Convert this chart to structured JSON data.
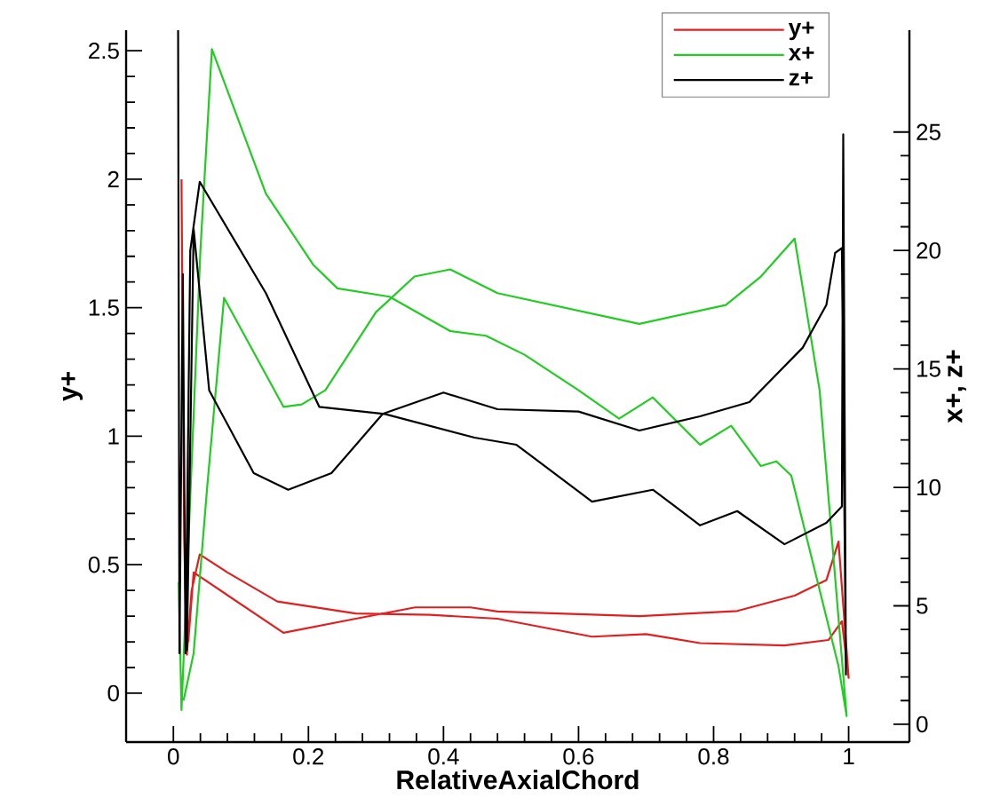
{
  "chart_data": {
    "type": "line",
    "xlabel": "RelativeAxialChord",
    "ylabel": "y+",
    "y2label": "x+, z+",
    "xlim": [
      -0.07,
      1.09
    ],
    "xticks": [
      0,
      0.2,
      0.4,
      0.6,
      0.8,
      1
    ],
    "ylim": [
      -0.19,
      2.58
    ],
    "yticks": [
      0,
      0.5,
      1,
      1.5,
      2,
      2.5
    ],
    "y2lim": [
      -0.75,
      29.3
    ],
    "y2ticks": [
      0,
      5,
      10,
      15,
      20,
      25
    ],
    "legend": "top right",
    "grid": false,
    "marker": "none",
    "line_style": "solid",
    "series": [
      {
        "name": "y+",
        "color": "#e02020",
        "axis": "y",
        "x": [
          0.012,
          0.016,
          0.02,
          0.027,
          0.039,
          0.08,
          0.154,
          0.27,
          0.38,
          0.48,
          0.62,
          0.7,
          0.78,
          0.905,
          0.97,
          0.99,
          1.0,
          0.985,
          0.967,
          0.92,
          0.835,
          0.69,
          0.48,
          0.44,
          0.358,
          0.27,
          0.163,
          0.03,
          0.022
        ],
        "values": [
          2.0,
          0.6,
          0.15,
          0.4,
          0.54,
          0.47,
          0.357,
          0.31,
          0.305,
          0.29,
          0.22,
          0.23,
          0.195,
          0.186,
          0.207,
          0.28,
          0.06,
          0.59,
          0.44,
          0.38,
          0.32,
          0.3,
          0.318,
          0.334,
          0.334,
          0.29,
          0.235,
          0.47,
          0.2
        ]
      },
      {
        "name": "x+",
        "color": "#22cc22",
        "axis": "y2",
        "x": [
          0.008,
          0.012,
          0.02,
          0.04,
          0.057,
          0.137,
          0.207,
          0.243,
          0.32,
          0.41,
          0.463,
          0.52,
          0.6,
          0.66,
          0.71,
          0.78,
          0.826,
          0.87,
          0.893,
          0.915,
          0.985,
          0.997,
          0.957,
          0.92,
          0.87,
          0.818,
          0.69,
          0.48,
          0.41,
          0.357,
          0.3,
          0.225,
          0.19,
          0.163,
          0.075,
          0.05,
          0.03,
          0.015
        ],
        "values": [
          6.0,
          0.6,
          null,
          20.0,
          28.5,
          22.4,
          19.4,
          18.4,
          18.05,
          16.6,
          16.4,
          15.6,
          14.1,
          12.9,
          13.8,
          11.8,
          12.6,
          10.9,
          11.1,
          10.5,
          2.45,
          0.35,
          14.1,
          20.5,
          18.9,
          17.7,
          16.9,
          18.2,
          19.2,
          18.9,
          17.4,
          14.1,
          13.5,
          13.4,
          18.0,
          10.0,
          3.0,
          1.0
        ]
      },
      {
        "name": "z+",
        "color": "#000000",
        "axis": "y2",
        "x": [
          0.007,
          0.009,
          0.014,
          0.018,
          0.025,
          0.039,
          0.137,
          0.216,
          0.313,
          0.446,
          0.508,
          0.62,
          0.71,
          0.78,
          0.835,
          0.905,
          0.967,
          0.99,
          0.992,
          0.996,
          0.99,
          0.98,
          0.967,
          0.932,
          0.853,
          0.78,
          0.69,
          0.6,
          0.48,
          0.4,
          0.31,
          0.234,
          0.17,
          0.119,
          0.053,
          0.03,
          0.02
        ],
        "values": [
          29.3,
          3.0,
          19.0,
          3.0,
          20.0,
          22.9,
          18.2,
          13.4,
          13.1,
          12.1,
          11.8,
          9.4,
          9.9,
          8.4,
          9.0,
          7.6,
          8.5,
          9.2,
          24.9,
          2.1,
          20.1,
          19.9,
          17.7,
          15.9,
          13.6,
          13.0,
          12.4,
          13.2,
          13.3,
          14.0,
          13.1,
          10.6,
          9.9,
          10.6,
          14.1,
          20.9,
          3.1
        ]
      }
    ]
  }
}
